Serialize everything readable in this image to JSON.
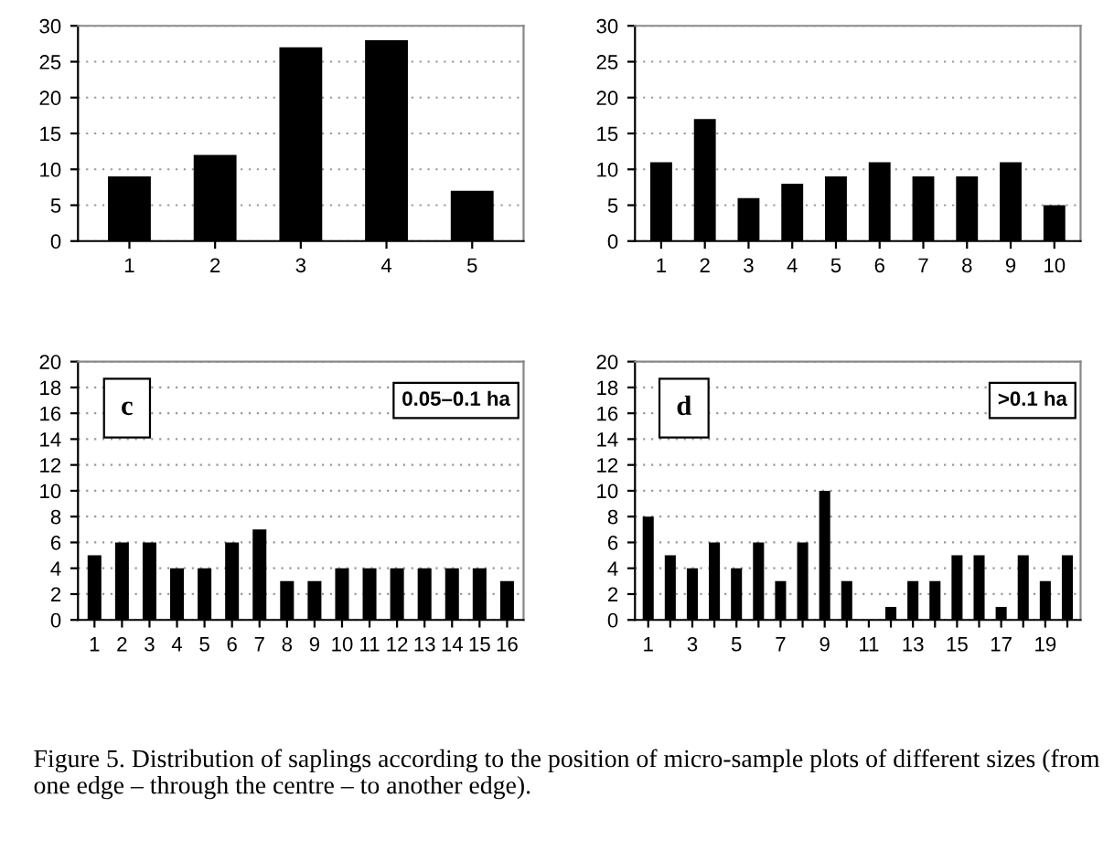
{
  "chart_data": [
    {
      "type": "bar",
      "categories": [
        "1",
        "2",
        "3",
        "4",
        "5"
      ],
      "values": [
        9,
        12,
        27,
        28,
        7
      ],
      "color": "#000000",
      "ylim": [
        0,
        30
      ],
      "yticks": [
        0,
        5,
        10,
        15,
        20,
        25,
        30
      ],
      "grid": "y"
    },
    {
      "type": "bar",
      "categories": [
        "1",
        "2",
        "3",
        "4",
        "5",
        "6",
        "7",
        "8",
        "9",
        "10"
      ],
      "values": [
        11,
        17,
        6,
        8,
        9,
        11,
        9,
        9,
        11,
        5
      ],
      "color": "#000000",
      "ylim": [
        0,
        30
      ],
      "yticks": [
        0,
        5,
        10,
        15,
        20,
        25,
        30
      ],
      "grid": "y"
    },
    {
      "type": "bar",
      "categories": [
        "1",
        "2",
        "3",
        "4",
        "5",
        "6",
        "7",
        "8",
        "9",
        "10",
        "11",
        "12",
        "13",
        "14",
        "15",
        "16"
      ],
      "values": [
        5,
        6,
        6,
        4,
        4,
        6,
        7,
        3,
        3,
        4,
        4,
        4,
        4,
        4,
        4,
        3
      ],
      "color": "#000000",
      "ylim": [
        0,
        20
      ],
      "yticks": [
        0,
        2,
        4,
        6,
        8,
        10,
        12,
        14,
        16,
        18,
        20
      ],
      "grid": "y",
      "annotations": [
        "c",
        "0.05–0.1 ha"
      ]
    },
    {
      "type": "bar",
      "categories": [
        "1",
        null,
        "3",
        null,
        "5",
        null,
        "7",
        null,
        "9",
        null,
        "11",
        null,
        "13",
        null,
        "15",
        null,
        "17",
        null,
        "19",
        null
      ],
      "values": [
        8,
        5,
        4,
        6,
        4,
        6,
        3,
        6,
        10,
        3,
        0,
        1,
        3,
        3,
        5,
        5,
        1,
        5,
        3,
        5
      ],
      "color": "#000000",
      "ylim": [
        0,
        20
      ],
      "yticks": [
        0,
        2,
        4,
        6,
        8,
        10,
        12,
        14,
        16,
        18,
        20
      ],
      "grid": "y",
      "annotations": [
        "d",
        ">0.1 ha",
        "Figure 5. Distribution of saplings according to the position of micro-sample plots of different sizes (from one edge – through the centre – to another edge)."
      ]
    }
  ]
}
